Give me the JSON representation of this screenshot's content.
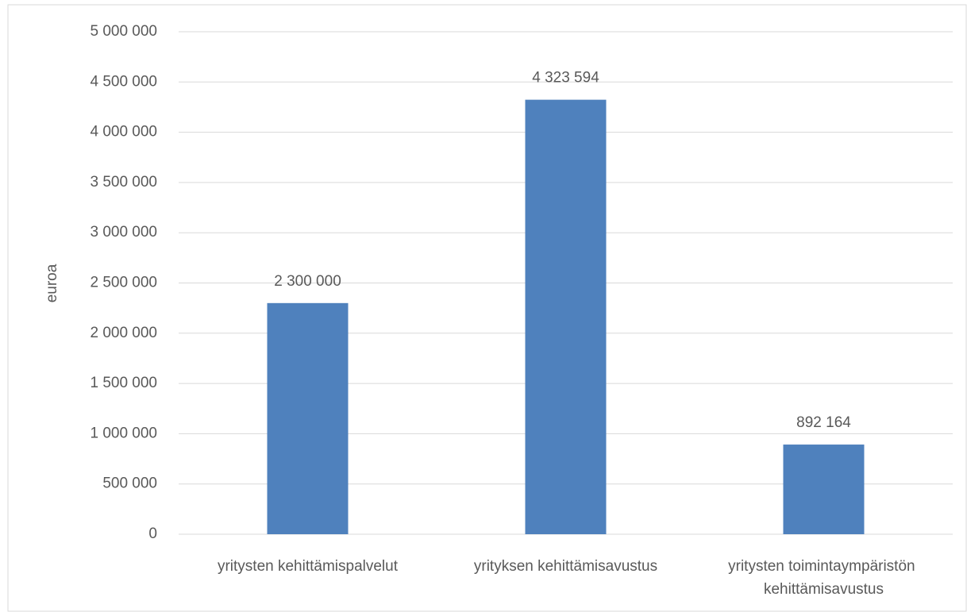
{
  "chart_data": {
    "type": "bar",
    "y_label": "euroa",
    "categories": [
      "yritysten kehittämispalvelut",
      "yrityksen kehittämisavustus",
      "yritysten toimintaympäristön kehittämisavustus"
    ],
    "values": [
      2300000,
      4323594,
      892164
    ],
    "value_labels": [
      "2 300 000",
      "4 323 594",
      "892 164"
    ],
    "color": "#4f81bd",
    "ylim": [
      0,
      5000000
    ],
    "yticks": [
      0,
      {
        "value": 500000,
        "label": "500 000"
      },
      {
        "value": 1000000,
        "label": "1 000 000"
      },
      {
        "value": 1500000,
        "label": "1 500 000"
      },
      {
        "value": 2000000,
        "label": "2 000 000"
      },
      {
        "value": 2500000,
        "label": "2 500 000"
      },
      {
        "value": 3000000,
        "label": "3 000 000"
      },
      {
        "value": 3500000,
        "label": "3 500 000"
      },
      {
        "value": 4000000,
        "label": "4 000 000"
      },
      {
        "value": 4500000,
        "label": "4 500 000"
      },
      {
        "value": 5000000,
        "label": "5 000 000"
      }
    ],
    "grid": true
  }
}
